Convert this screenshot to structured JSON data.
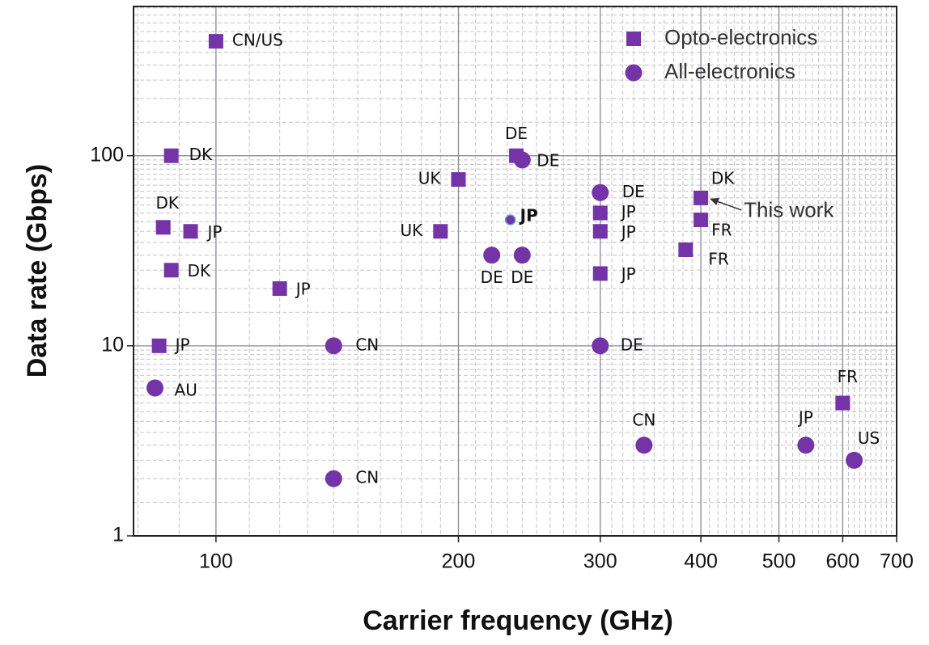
{
  "chart_data": {
    "type": "scatter",
    "x_label": "Carrier frequency (GHz)",
    "y_label": "Data rate (Gbps)",
    "xscale": "log",
    "yscale": "log",
    "xlim": [
      79,
      700
    ],
    "ylim": [
      1,
      610
    ],
    "xticks": [
      100,
      200,
      300,
      400,
      500,
      600,
      700
    ],
    "yticks": [
      1,
      10,
      100
    ],
    "grid": true,
    "legend": "upper right",
    "annotation": "This work",
    "series": [
      {
        "name": "Opto-electronics",
        "marker": "square",
        "color": "#7433a6",
        "x": [
          100,
          88,
          86,
          93,
          88,
          120,
          85,
          200,
          190,
          236,
          300,
          300,
          300,
          400,
          400,
          383,
          600
        ],
        "values": [
          400,
          100,
          42,
          40,
          25,
          20,
          10,
          75,
          40,
          100,
          50,
          40,
          24,
          60,
          46,
          32,
          5
        ],
        "labels": [
          "CN/US",
          "DK",
          "DK",
          "JP",
          "DK",
          "JP",
          "JP",
          "UK",
          "UK",
          "DE",
          "JP",
          "JP",
          "JP",
          "DK",
          "FR",
          "FR",
          "FR"
        ]
      },
      {
        "name": "All-electronics",
        "marker": "circle",
        "color": "#7433a6",
        "x": [
          240,
          232,
          220,
          240,
          300,
          300,
          140,
          140,
          84,
          340,
          540,
          620
        ],
        "values": [
          95,
          46,
          30,
          30,
          64,
          10,
          10,
          2,
          6,
          3,
          3,
          2.5
        ],
        "labels": [
          "DE",
          "JP",
          "DE",
          "DE",
          "DE",
          "DE",
          "CN",
          "CN",
          "AU",
          "CN",
          "JP",
          "US"
        ]
      }
    ]
  }
}
